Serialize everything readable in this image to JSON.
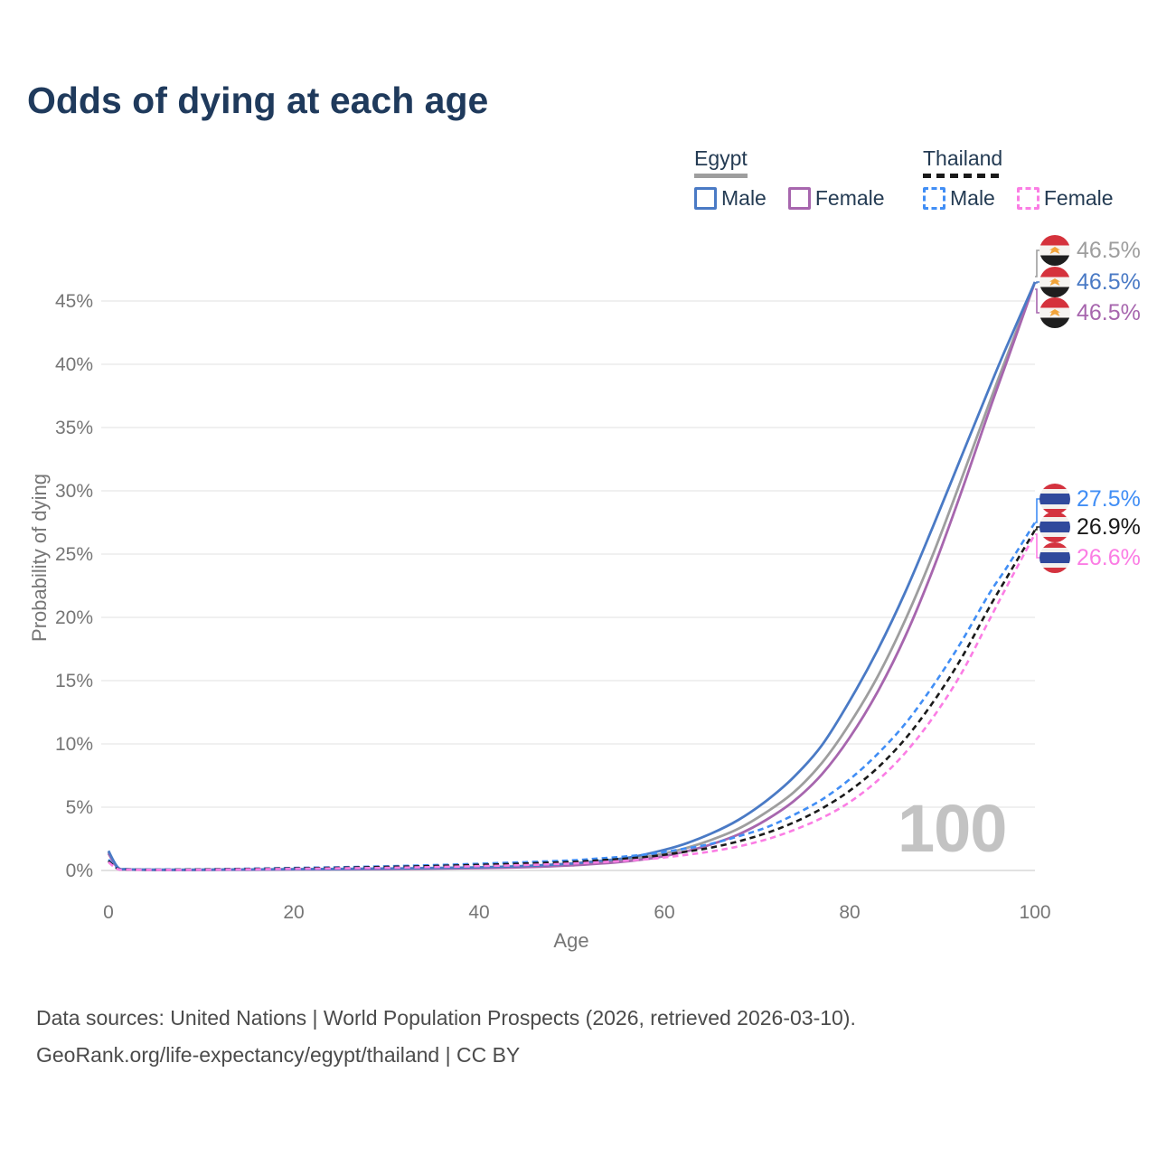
{
  "title": "Odds of dying at each age",
  "legend": {
    "groups": [
      {
        "label": "Egypt",
        "underline_style": "solid",
        "underline_color": "#9e9e9e",
        "items": [
          {
            "label": "Male",
            "swatch_color": "#4a7ac5",
            "swatch_style": "solid"
          },
          {
            "label": "Female",
            "swatch_color": "#a766ae",
            "swatch_style": "solid"
          }
        ]
      },
      {
        "label": "Thailand",
        "underline_style": "dashed",
        "underline_color": "#1a1a1a",
        "items": [
          {
            "label": "Male",
            "swatch_color": "#418ef5",
            "swatch_style": "dashed"
          },
          {
            "label": "Female",
            "swatch_color": "#fb7de4",
            "swatch_style": "dashed"
          }
        ]
      }
    ]
  },
  "icons": {
    "egypt_flag": "egypt-circle-flag",
    "thailand_flag": "thailand-circle-flag"
  },
  "chart_data": {
    "type": "line",
    "title": "Odds of dying at each age",
    "xlabel": "Age",
    "ylabel": "Probability of dying",
    "x_ticks": [
      0,
      20,
      40,
      60,
      80,
      100
    ],
    "y_ticks_pct": [
      0,
      5,
      10,
      15,
      20,
      25,
      30,
      35,
      40,
      45
    ],
    "xlim": [
      0,
      100
    ],
    "ylim_pct": [
      0,
      48
    ],
    "grid": "horizontal",
    "hover_age_label": "100",
    "ages": [
      0,
      1,
      2,
      5,
      10,
      15,
      20,
      25,
      30,
      35,
      40,
      45,
      50,
      53,
      56,
      59,
      62,
      65,
      68,
      71,
      74,
      77,
      80,
      83,
      86,
      89,
      92,
      95,
      97,
      100
    ],
    "series": [
      {
        "id": "egypt-all",
        "name": "Egypt (both sexes)",
        "style": "solid",
        "color": "#9e9e9e",
        "values": [
          1.45,
          0.22,
          0.09,
          0.05,
          0.05,
          0.07,
          0.09,
          0.11,
          0.13,
          0.17,
          0.22,
          0.31,
          0.47,
          0.63,
          0.85,
          1.2,
          1.7,
          2.4,
          3.3,
          4.6,
          6.2,
          8.5,
          11.6,
          15.3,
          19.8,
          25.0,
          30.8,
          36.8,
          40.7,
          46.5
        ],
        "end_label": "46.5%"
      },
      {
        "id": "egypt-female",
        "name": "Egypt Female",
        "style": "solid",
        "color": "#a766ae",
        "values": [
          1.35,
          0.2,
          0.08,
          0.04,
          0.04,
          0.06,
          0.08,
          0.09,
          0.11,
          0.14,
          0.19,
          0.26,
          0.4,
          0.54,
          0.73,
          1.0,
          1.45,
          2.05,
          2.85,
          4.0,
          5.5,
          7.6,
          10.5,
          14.1,
          18.5,
          23.8,
          29.8,
          36.2,
          40.3,
          46.5
        ],
        "end_label": "46.5%"
      },
      {
        "id": "egypt-male",
        "name": "Egypt Male",
        "style": "solid",
        "color": "#4a7ac5",
        "values": [
          1.55,
          0.25,
          0.1,
          0.06,
          0.06,
          0.08,
          0.1,
          0.12,
          0.15,
          0.19,
          0.25,
          0.36,
          0.55,
          0.75,
          1.0,
          1.45,
          2.05,
          2.9,
          4.0,
          5.5,
          7.4,
          9.9,
          13.4,
          17.4,
          22.0,
          27.2,
          32.6,
          38.0,
          41.5,
          46.5
        ],
        "end_label": "46.5%"
      },
      {
        "id": "thailand-male",
        "name": "Thailand Male",
        "style": "dashed",
        "color": "#418ef5",
        "values": [
          0.85,
          0.15,
          0.09,
          0.07,
          0.09,
          0.14,
          0.2,
          0.26,
          0.33,
          0.42,
          0.53,
          0.66,
          0.8,
          0.95,
          1.12,
          1.35,
          1.7,
          2.1,
          2.7,
          3.4,
          4.4,
          5.6,
          7.2,
          9.2,
          11.6,
          14.6,
          18.0,
          21.8,
          24.0,
          27.5
        ],
        "end_label": "27.5%"
      },
      {
        "id": "thailand-all",
        "name": "Thailand (both sexes)",
        "style": "dashed",
        "color": "#1a1a1a",
        "values": [
          0.75,
          0.13,
          0.08,
          0.06,
          0.08,
          0.12,
          0.17,
          0.22,
          0.28,
          0.35,
          0.44,
          0.55,
          0.68,
          0.8,
          0.95,
          1.15,
          1.45,
          1.8,
          2.3,
          2.95,
          3.8,
          4.9,
          6.3,
          8.1,
          10.4,
          13.3,
          16.7,
          20.7,
          23.2,
          26.9
        ],
        "end_label": "26.9%"
      },
      {
        "id": "thailand-female",
        "name": "Thailand Female",
        "style": "dashed",
        "color": "#fb7de4",
        "values": [
          0.65,
          0.11,
          0.07,
          0.05,
          0.06,
          0.09,
          0.13,
          0.17,
          0.21,
          0.27,
          0.34,
          0.43,
          0.55,
          0.65,
          0.78,
          0.95,
          1.2,
          1.5,
          1.9,
          2.45,
          3.2,
          4.15,
          5.4,
          7.1,
          9.3,
          12.1,
          15.5,
          19.7,
          22.5,
          26.6
        ],
        "end_label": "26.6%"
      }
    ],
    "end_labels": [
      {
        "series": "egypt-all",
        "value": "46.5%",
        "color": "#9e9e9e",
        "flag": "egypt"
      },
      {
        "series": "egypt-male",
        "value": "46.5%",
        "color": "#4a7ac5",
        "flag": "egypt"
      },
      {
        "series": "egypt-female",
        "value": "46.5%",
        "color": "#a766ae",
        "flag": "egypt"
      },
      {
        "series": "thailand-male",
        "value": "27.5%",
        "color": "#418ef5",
        "flag": "thailand"
      },
      {
        "series": "thailand-all",
        "value": "26.9%",
        "color": "#1a1a1a",
        "flag": "thailand"
      },
      {
        "series": "thailand-female",
        "value": "26.6%",
        "color": "#fb7de4",
        "flag": "thailand"
      }
    ]
  },
  "footer": {
    "line1": "Data sources: United Nations | World Population Prospects (2026, retrieved 2026-03-10).",
    "line2": "GeoRank.org/life-expectancy/egypt/thailand | CC BY"
  }
}
